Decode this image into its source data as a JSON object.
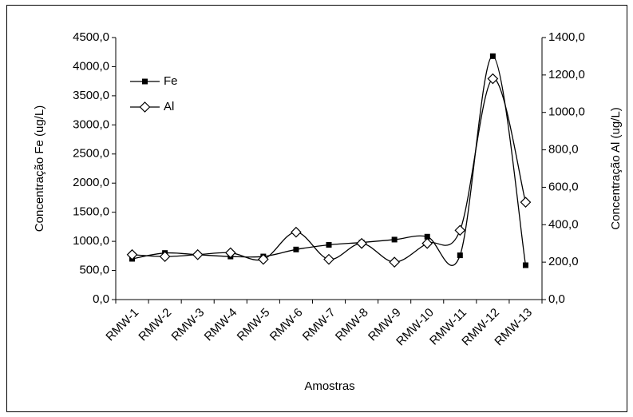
{
  "chart_data": {
    "type": "line",
    "x_label": "Amostras",
    "y_label": "Concentração Fe (ug/L)",
    "y2_label": "Concentração Al (ug/L)",
    "categories": [
      "RMW-1",
      "RMW-2",
      "RMW-3",
      "RMW-4",
      "RMW-5",
      "RMW-6",
      "RMW-7",
      "RMW-8",
      "RMW-9",
      "RMW-10",
      "RMW-11",
      "RMW-12",
      "RMW-13"
    ],
    "series": [
      {
        "name": "Fe",
        "color": "#000000",
        "marker": "square",
        "values": [
          700,
          800,
          770,
          740,
          740,
          860,
          940,
          980,
          1030,
          1080,
          760,
          4180,
          590
        ]
      },
      {
        "name": "Al",
        "color": "#000000",
        "marker": "diamond",
        "axis": "y2",
        "values": [
          240,
          230,
          240,
          250,
          215,
          360,
          215,
          300,
          200,
          300,
          370,
          1180,
          520
        ]
      }
    ],
    "ylim": [
      0,
      4500
    ],
    "yticks": [
      {
        "value": 0,
        "label": "0,0"
      },
      {
        "value": 500,
        "label": "500,0"
      },
      {
        "value": 1000,
        "label": "1000,0"
      },
      {
        "value": 1500,
        "label": "1500,0"
      },
      {
        "value": 2000,
        "label": "2000,0"
      },
      {
        "value": 2500,
        "label": "2500,0"
      },
      {
        "value": 3000,
        "label": "3000,0"
      },
      {
        "value": 3500,
        "label": "3500,0"
      },
      {
        "value": 4000,
        "label": "4000,0"
      },
      {
        "value": 4500,
        "label": "4500,0"
      }
    ],
    "y2lim": [
      0,
      1400
    ],
    "y2ticks": [
      {
        "value": 0,
        "label": "0,0"
      },
      {
        "value": 200,
        "label": "200,0"
      },
      {
        "value": 400,
        "label": "400,0"
      },
      {
        "value": 600,
        "label": "600,0"
      },
      {
        "value": 800,
        "label": "800,0"
      },
      {
        "value": 1000,
        "label": "1000,0"
      },
      {
        "value": 1200,
        "label": "1200,0"
      },
      {
        "value": 1400,
        "label": "1400,0"
      }
    ],
    "smooth": true,
    "grid": false,
    "legend": "upper-left"
  }
}
